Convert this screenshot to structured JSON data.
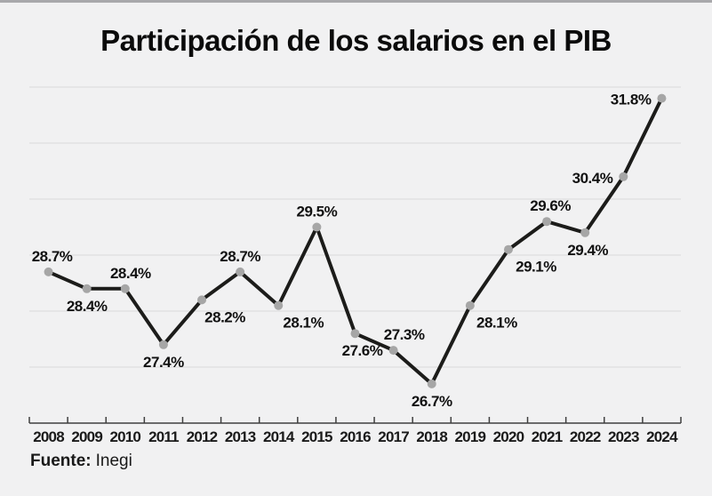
{
  "page": {
    "background": "#f1f1f2",
    "top_border_color": "#a8a8ab"
  },
  "title": "Participación de los salarios en el PIB",
  "source": {
    "label": "Fuente:",
    "value": "Inegi"
  },
  "chart_data": {
    "type": "line",
    "title": "Participación de los salarios en el PIB",
    "categories": [
      "2008",
      "2009",
      "2010",
      "2011",
      "2012",
      "2013",
      "2014",
      "2015",
      "2016",
      "2017",
      "2018",
      "2019",
      "2020",
      "2021",
      "2022",
      "2023",
      "2024"
    ],
    "values": [
      28.7,
      28.4,
      28.4,
      27.4,
      28.2,
      28.7,
      28.1,
      29.5,
      27.6,
      27.3,
      26.7,
      28.1,
      29.1,
      29.6,
      29.4,
      30.4,
      31.8
    ],
    "unit": "%",
    "value_label_suffix": "%",
    "xlabel": "",
    "ylabel": "",
    "ylim": [
      26,
      32
    ],
    "grid": true,
    "gridline_values": [
      27,
      28,
      29,
      30,
      31,
      32
    ],
    "legend": false,
    "source": "Fuente: Inegi",
    "label_positions": [
      [
        "above",
        4
      ],
      [
        "below",
        0
      ],
      [
        "above",
        6
      ],
      [
        "below",
        0
      ],
      [
        "below",
        26
      ],
      [
        "above",
        0
      ],
      [
        "below",
        28
      ],
      [
        "above",
        0
      ],
      [
        "below",
        8
      ],
      [
        "above",
        12
      ],
      [
        "below",
        0
      ],
      [
        "below",
        30
      ],
      [
        "below",
        31
      ],
      [
        "above",
        4
      ],
      [
        "below",
        3
      ],
      [
        "left",
        0
      ],
      [
        "left",
        0
      ]
    ],
    "colors": {
      "line": "#1c1c1a",
      "marker": "#a6a6a6",
      "grid": "#d9d9d9",
      "axis": "#3f3f3f",
      "label": "#111111",
      "tick_label": "#1a1a1a"
    }
  }
}
